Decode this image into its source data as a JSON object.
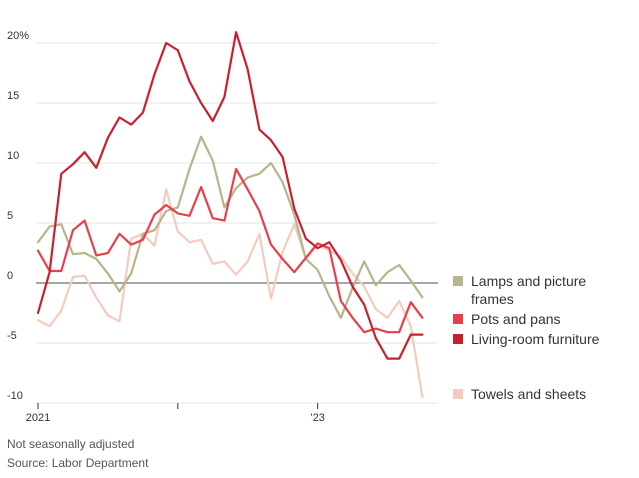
{
  "chart_data": {
    "type": "line",
    "title": "",
    "xlabel": "",
    "ylabel": "",
    "ylim": [
      -10,
      20
    ],
    "y_ticks": [
      "20%",
      "15",
      "10",
      "5",
      "0",
      "-5",
      "-10"
    ],
    "y_tick_values": [
      20,
      15,
      10,
      5,
      0,
      -5,
      -10
    ],
    "x_tick_labels": [
      "2021",
      "’23"
    ],
    "x_tick_label_months": [
      0,
      24
    ],
    "x_minor_tick_months": [
      12
    ],
    "grid": "horizontal",
    "zero_line": true,
    "legend_position": "right",
    "x": [
      "2021-01",
      "2021-02",
      "2021-03",
      "2021-04",
      "2021-05",
      "2021-06",
      "2021-07",
      "2021-08",
      "2021-09",
      "2021-10",
      "2021-11",
      "2021-12",
      "2022-01",
      "2022-02",
      "2022-03",
      "2022-04",
      "2022-05",
      "2022-06",
      "2022-07",
      "2022-08",
      "2022-09",
      "2022-10",
      "2022-11",
      "2022-12",
      "2023-01",
      "2023-02",
      "2023-03",
      "2023-04",
      "2023-05",
      "2023-06",
      "2023-07",
      "2023-08",
      "2023-09",
      "2023-10"
    ],
    "series": [
      {
        "name": "Lamps and picture frames",
        "color": "#b8b58c",
        "values": [
          3.4,
          4.7,
          4.9,
          2.4,
          2.5,
          2.0,
          0.8,
          -0.7,
          0.8,
          4.1,
          4.4,
          6.0,
          6.3,
          9.5,
          12.2,
          10.2,
          6.3,
          7.9,
          8.8,
          9.1,
          10.0,
          8.4,
          5.7,
          2.0,
          1.1,
          -1.1,
          -2.9,
          -0.4,
          1.8,
          -0.2,
          0.9,
          1.5,
          0.2,
          -1.2
        ]
      },
      {
        "name": "Pots and pans",
        "color": "#e8404a",
        "values": [
          2.7,
          1.0,
          1.0,
          4.4,
          5.2,
          2.3,
          2.5,
          4.1,
          3.2,
          3.6,
          5.7,
          6.5,
          5.8,
          5.6,
          8.0,
          5.4,
          5.2,
          9.5,
          7.8,
          6.0,
          3.2,
          2.0,
          0.9,
          2.1,
          3.3,
          2.9,
          -1.5,
          -2.9,
          -4.1,
          -3.8,
          -4.1,
          -4.1,
          -1.6,
          -2.9
        ]
      },
      {
        "name": "Living-room furniture",
        "color": "#c9202d",
        "values": [
          -2.5,
          0.9,
          9.1,
          9.9,
          10.9,
          9.6,
          12.1,
          13.8,
          13.2,
          14.2,
          17.4,
          20.0,
          19.4,
          16.8,
          15.0,
          13.5,
          15.5,
          20.9,
          17.8,
          12.8,
          11.9,
          10.5,
          6.2,
          3.7,
          2.9,
          3.4,
          1.9,
          -0.3,
          -1.8,
          -4.6,
          -6.3,
          -6.3,
          -4.3,
          -4.3
        ]
      },
      {
        "name": "Towels and sheets",
        "color": "#f6cbbf",
        "values": [
          -3.1,
          -3.6,
          -2.3,
          0.5,
          0.6,
          -1.2,
          -2.7,
          -3.2,
          3.7,
          4.1,
          3.1,
          7.8,
          4.3,
          3.4,
          3.6,
          1.6,
          1.8,
          0.7,
          1.8,
          4.1,
          -1.3,
          2.6,
          4.9,
          2.0,
          3.2,
          2.7,
          2.2,
          0.8,
          -0.3,
          -2.2,
          -2.9,
          -1.5,
          -3.6,
          -9.5
        ]
      }
    ],
    "legend_order": [
      "Lamps and picture frames",
      "Pots and pans",
      "Living-room furniture",
      "Towels and sheets"
    ]
  },
  "footnotes": {
    "adjustment": "Not seasonally adjusted",
    "source": "Source: Labor Department"
  },
  "colors": {
    "grid": "#e4e4e4",
    "zero_line": "#888888",
    "axis_tick": "#333333"
  }
}
